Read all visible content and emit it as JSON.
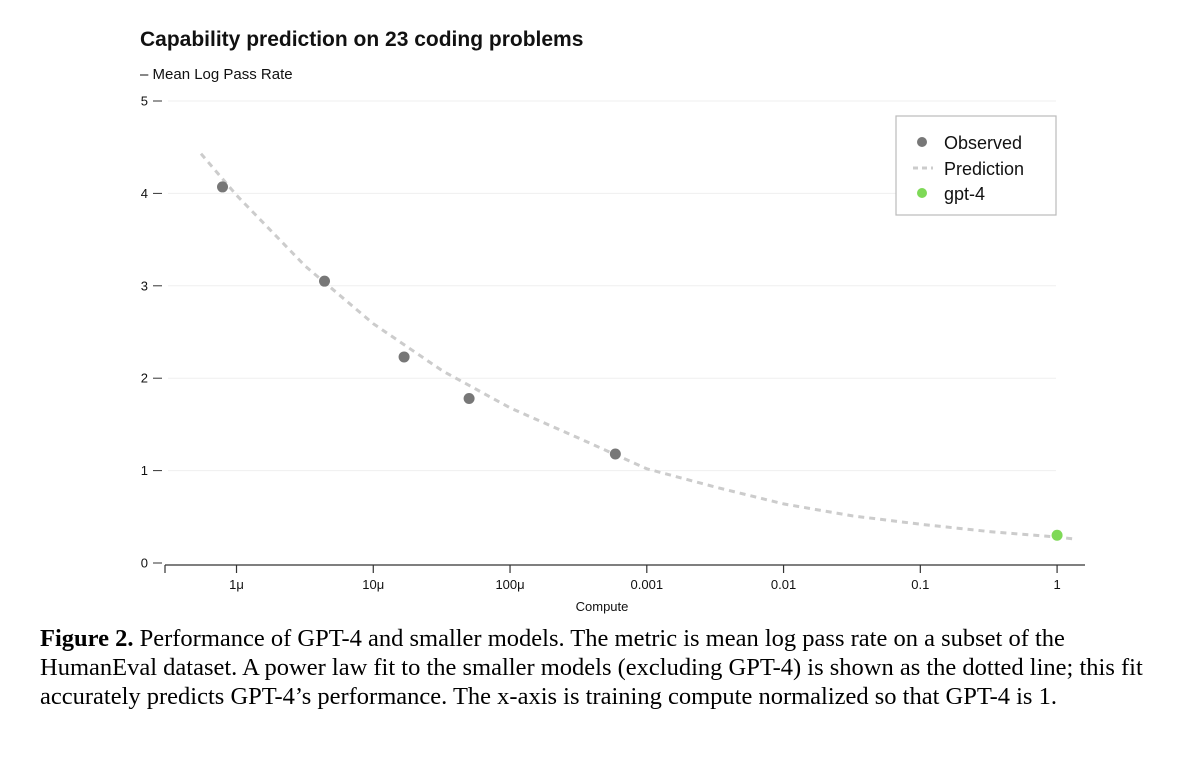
{
  "chart_data": {
    "type": "scatter",
    "title": "Capability prediction on 23 coding problems",
    "ylabel": "– Mean Log Pass Rate",
    "xlabel": "Compute",
    "x_scale": "log",
    "xlim": [
      3e-07,
      1.6
    ],
    "ylim": [
      0,
      5
    ],
    "y_ticks": [
      "0",
      "1",
      "2",
      "3",
      "4",
      "5"
    ],
    "x_ticks": [
      {
        "value": 1e-06,
        "label": "1μ"
      },
      {
        "value": 1e-05,
        "label": "10μ"
      },
      {
        "value": 0.0001,
        "label": "100μ"
      },
      {
        "value": 0.001,
        "label": "0.001"
      },
      {
        "value": 0.01,
        "label": "0.01"
      },
      {
        "value": 0.1,
        "label": "0.1"
      },
      {
        "value": 1,
        "label": "1"
      }
    ],
    "grid": "horizontal",
    "legend_position": "top-right",
    "legend": [
      "Observed",
      "Prediction",
      "gpt-4"
    ],
    "series": [
      {
        "name": "Observed",
        "color": "#777777",
        "x": [
          7.9e-07,
          4.4e-06,
          1.68e-05,
          5.02e-05,
          0.000589
        ],
        "y": [
          4.07,
          3.05,
          2.23,
          1.78,
          1.18
        ]
      },
      {
        "name": "Prediction",
        "color": "#cccccc",
        "style": "dashed",
        "x": [
          5.5e-07,
          1e-06,
          3.2e-06,
          1e-05,
          3.2e-05,
          0.0001,
          0.00032,
          0.001,
          0.0032,
          0.01,
          0.032,
          0.1,
          0.32,
          1,
          1.35
        ],
        "y": [
          4.43,
          3.98,
          3.21,
          2.59,
          2.08,
          1.68,
          1.35,
          1.02,
          0.82,
          0.64,
          0.51,
          0.42,
          0.34,
          0.28,
          0.26
        ]
      },
      {
        "name": "gpt-4",
        "color": "#7ed957",
        "x": [
          1
        ],
        "y": [
          0.3
        ]
      }
    ]
  },
  "caption": {
    "label": "Figure 2.",
    "text": " Performance of GPT-4 and smaller models. The metric is mean log pass rate on a subset of the HumanEval dataset. A power law fit to the smaller models (excluding GPT-4) is shown as the dotted line; this fit accurately predicts GPT-4’s performance. The x-axis is training compute normalized so that GPT-4 is 1."
  }
}
